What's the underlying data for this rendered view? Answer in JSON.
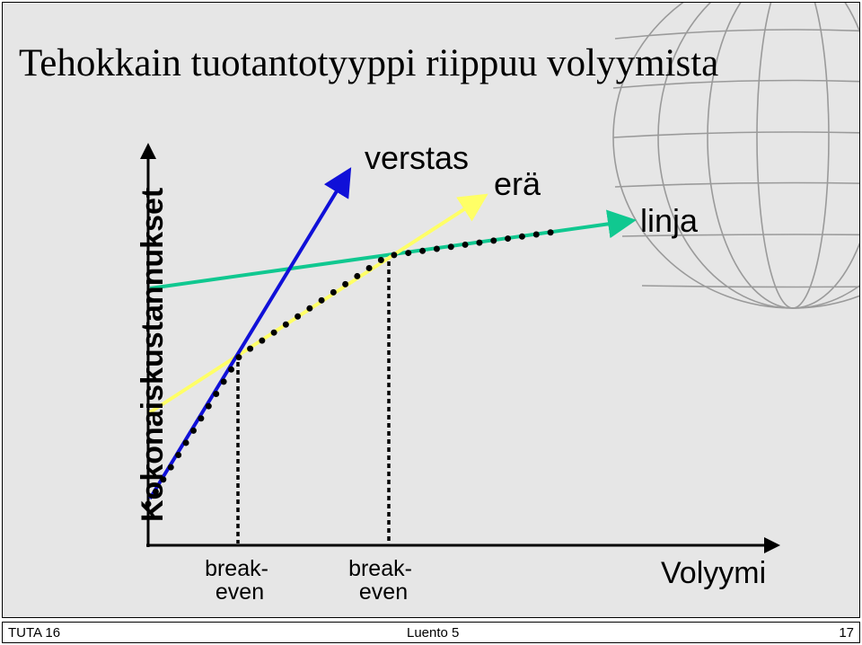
{
  "title": "Tehokkain tuotantotyyppi riippuu volyymista",
  "axes": {
    "y_label": "Kokonaiskustannukset",
    "x_label": "Volyymi"
  },
  "lines": {
    "verstas": {
      "label": "verstas",
      "color": "#1010d8"
    },
    "era": {
      "label": "erä",
      "color": "#ffff66"
    },
    "linja": {
      "label": "linja",
      "color": "#10c890"
    }
  },
  "breakeven": {
    "first": {
      "line1": "break-",
      "line2": "even"
    },
    "second": {
      "line1": "break-",
      "line2": "even"
    }
  },
  "footer": {
    "left": "TUTA 16",
    "center": "Luento 5",
    "right": "17"
  }
}
